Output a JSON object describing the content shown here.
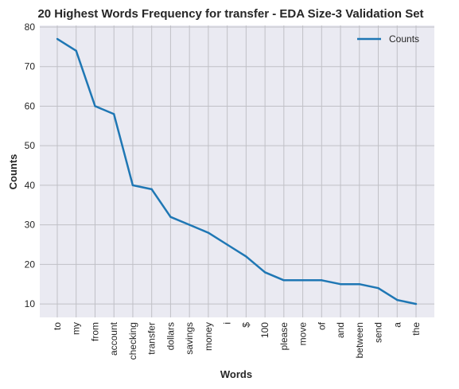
{
  "chart_data": {
    "type": "line",
    "title": "20 Highest Words Frequency for transfer - EDA Size-3 Validation Set",
    "xlabel": "Words",
    "ylabel": "Counts",
    "categories": [
      "to",
      "my",
      "from",
      "account",
      "checking",
      "transfer",
      "dollars",
      "savings",
      "money",
      "i",
      "$",
      "100",
      "please",
      "move",
      "of",
      "and",
      "between",
      "send",
      "a",
      "the"
    ],
    "series": [
      {
        "name": "Counts",
        "values": [
          77,
          74,
          60,
          58,
          40,
          39,
          32,
          30,
          28,
          25,
          22,
          18,
          16,
          16,
          16,
          15,
          15,
          14,
          11,
          10
        ]
      }
    ],
    "ylim": [
      6.6,
      80.4
    ],
    "yticks": [
      10,
      20,
      30,
      40,
      50,
      60,
      70,
      80
    ],
    "grid": true,
    "legend_position": "top-right",
    "colors": {
      "line": "#1f77b4",
      "plot_bg": "#eaeaf2",
      "grid": "#c0c0c6",
      "text": "#262626"
    }
  }
}
